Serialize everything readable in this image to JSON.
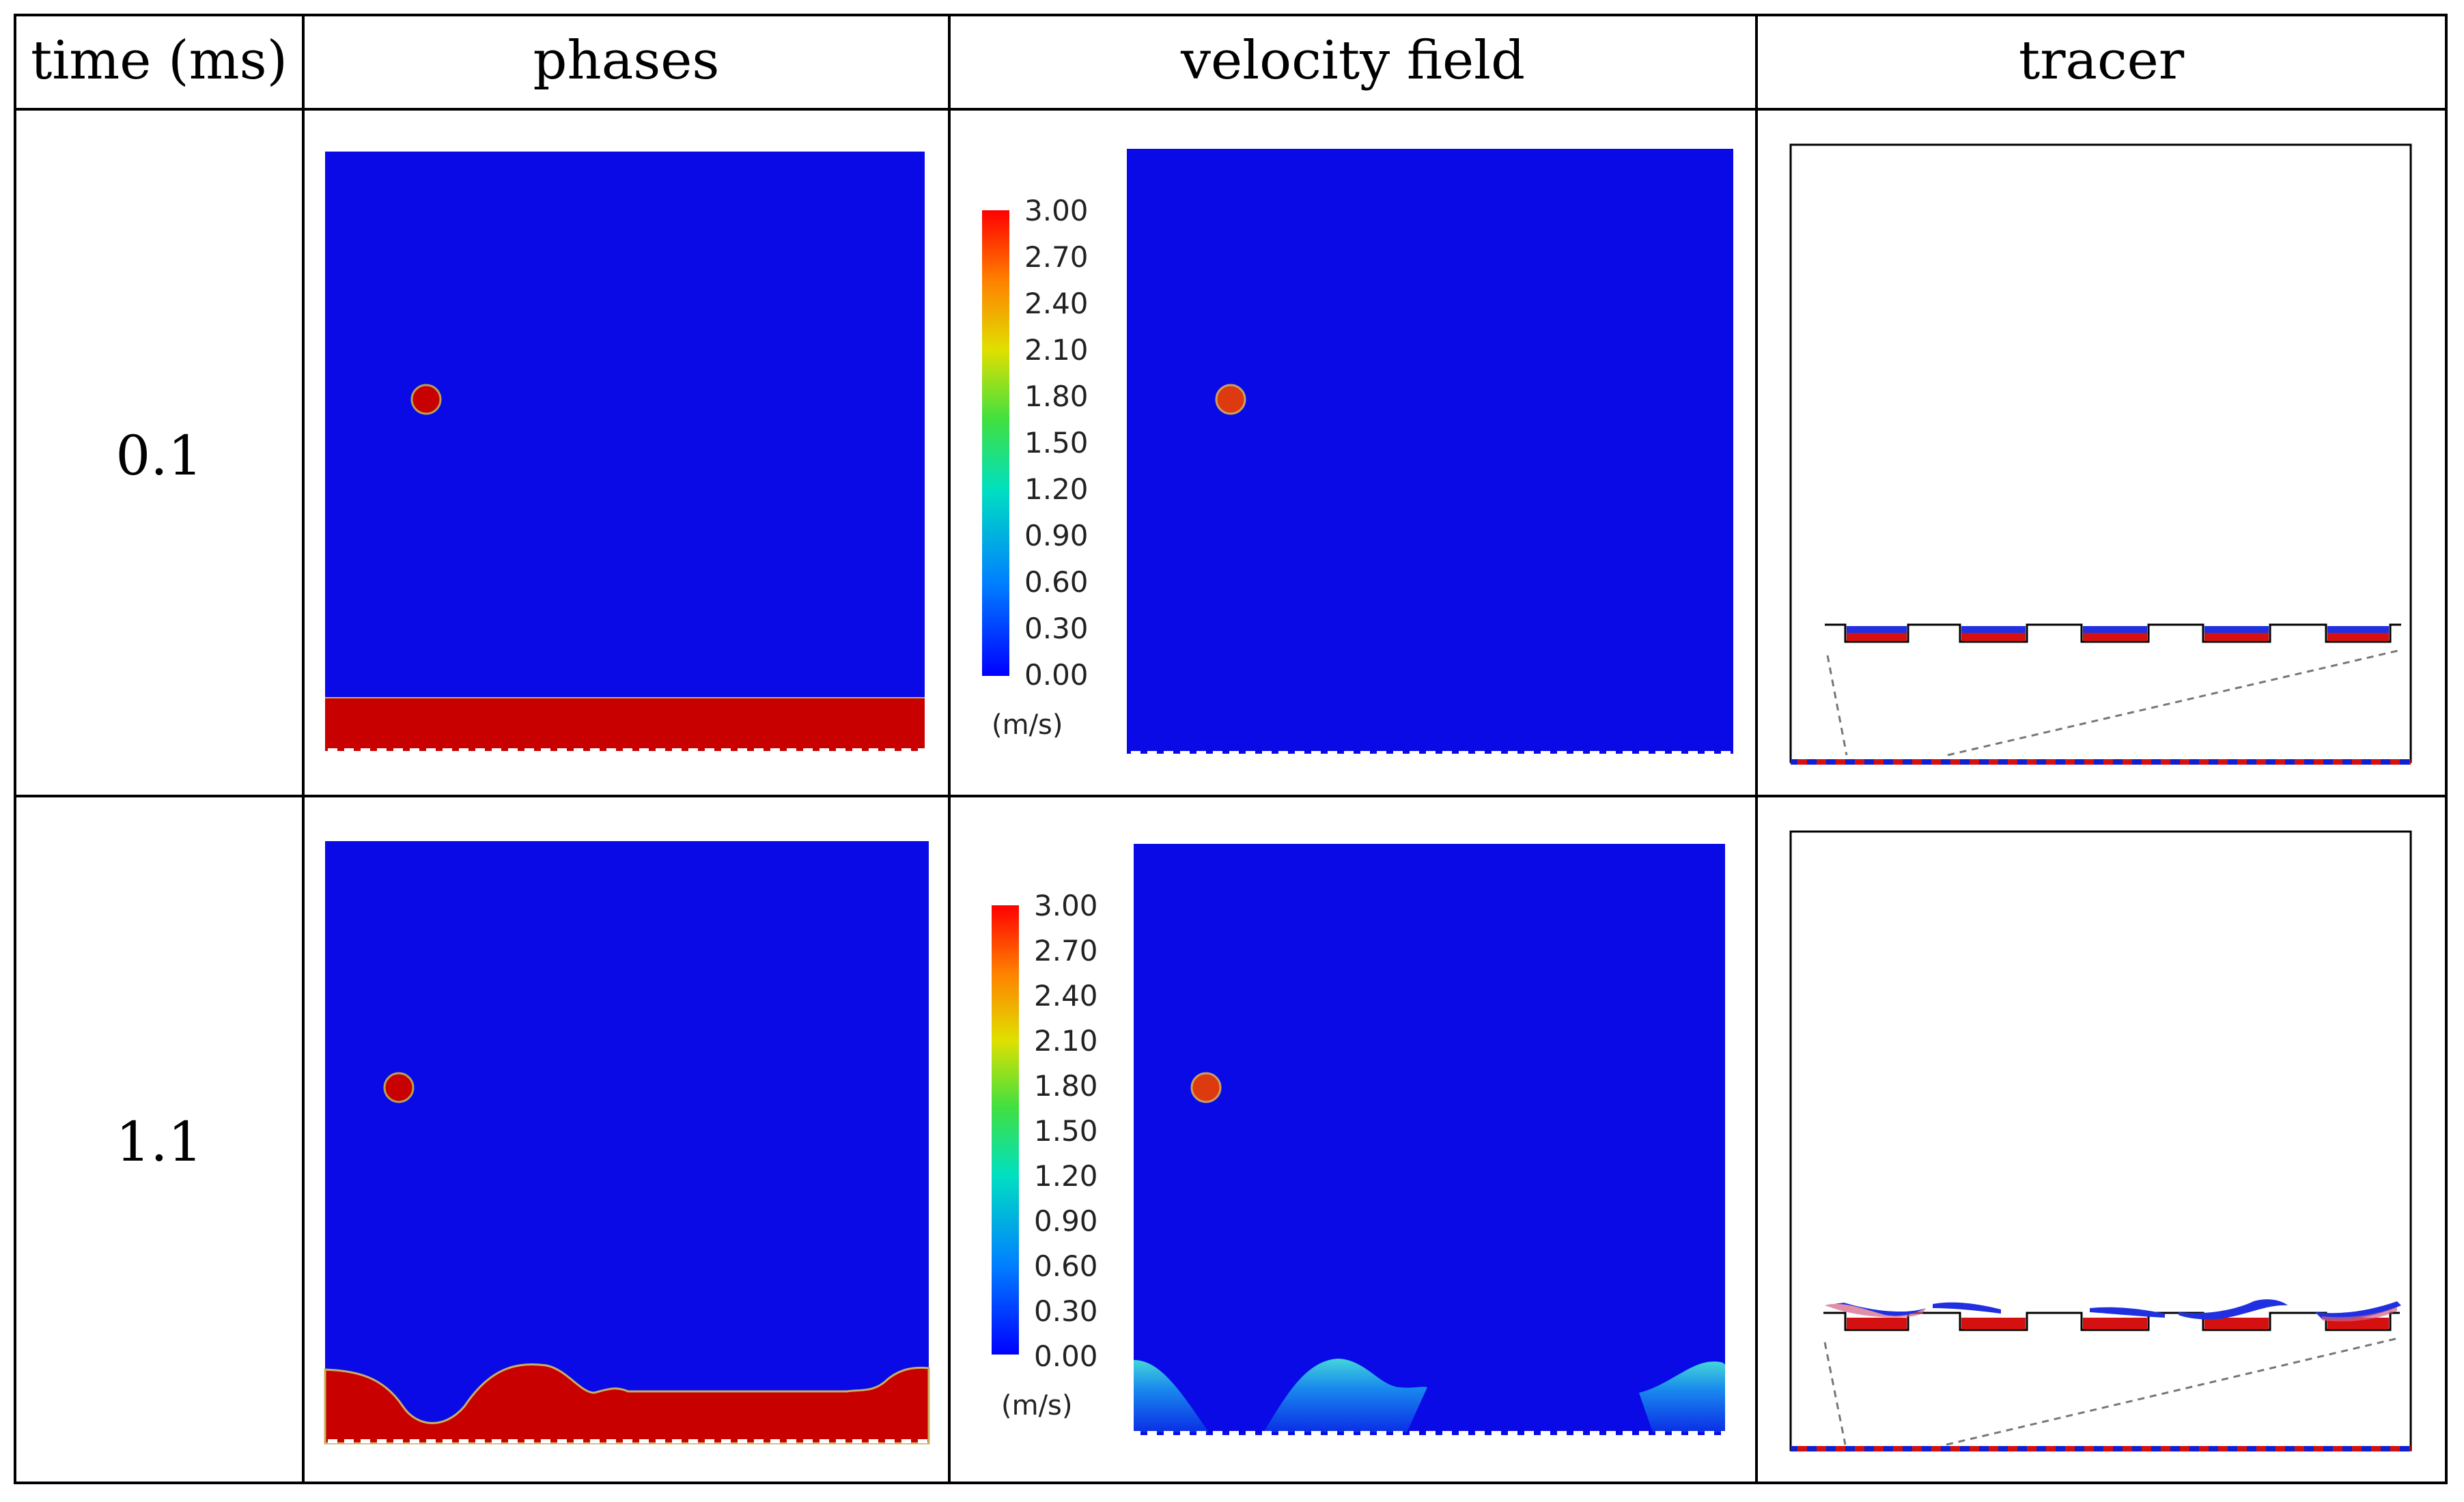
{
  "table": {
    "headers": [
      "time (ms)",
      "phases",
      "velocity field",
      "tracer"
    ],
    "rows": [
      {
        "time": "0.1",
        "time_ms": 0.1
      },
      {
        "time": "1.1",
        "time_ms": 1.1
      }
    ]
  },
  "colorbar": {
    "ticks": [
      "3.00",
      "2.70",
      "2.40",
      "2.10",
      "1.80",
      "1.50",
      "1.20",
      "0.90",
      "0.60",
      "0.30",
      "0.00"
    ],
    "unit": "(m/s)",
    "min": 0.0,
    "max": 3.0
  },
  "colors": {
    "gas": "#0a0ae6",
    "liquid": "#c80000",
    "particle": "#dd2a0a",
    "velocity_peak": "#3ec8e0",
    "grid_line": "#000000"
  }
}
